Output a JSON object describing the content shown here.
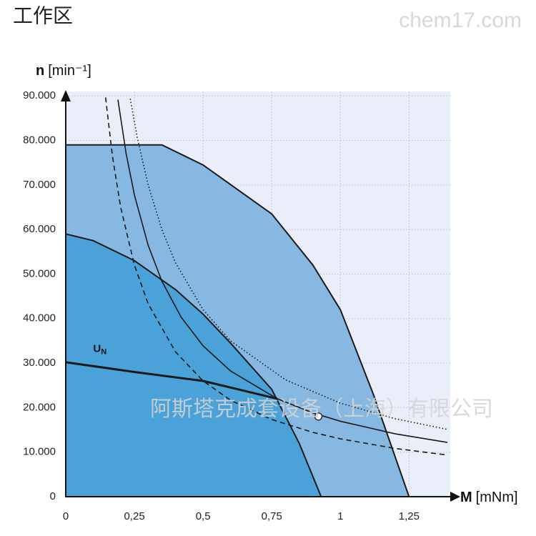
{
  "title": "工作区",
  "watermark": "chem17.com",
  "chart_data": {
    "type": "area",
    "x_label_symbol": "M",
    "x_label_unit": "[mNm]",
    "y_label_symbol": "n",
    "y_label_unit": "[min⁻¹]",
    "xlim": [
      0,
      1.4
    ],
    "ylim": [
      0,
      91000
    ],
    "xticks": [
      0,
      {
        "value": 0.25,
        "label": "0,25"
      },
      {
        "value": 0.5,
        "label": "0,5"
      },
      {
        "value": 0.75,
        "label": "0,75"
      },
      1,
      {
        "value": 1.25,
        "label": "1,25"
      }
    ],
    "yticks": [
      0,
      {
        "value": 10000,
        "label": "10.000"
      },
      {
        "value": 20000,
        "label": "20.000"
      },
      {
        "value": 30000,
        "label": "30.000"
      },
      {
        "value": 40000,
        "label": "40.000"
      },
      {
        "value": 50000,
        "label": "50.000"
      },
      {
        "value": 60000,
        "label": "60.000"
      },
      {
        "value": 70000,
        "label": "70.000"
      },
      {
        "value": 80000,
        "label": "80.000"
      },
      {
        "value": 90000,
        "label": "90.000"
      }
    ],
    "grid": true,
    "background": "#e9eef8",
    "series": [
      {
        "style": "area",
        "color": "#86b8e2",
        "x": [
          0,
          0.25,
          0.35,
          0.5,
          0.75,
          0.9,
          1.0,
          1.12,
          1.25
        ],
        "values": [
          79000,
          79000,
          79000,
          74500,
          63500,
          52000,
          42000,
          23000,
          0
        ]
      },
      {
        "style": "area",
        "color": "#4aa2d9",
        "x": [
          0,
          0.1,
          0.25,
          0.4,
          0.5,
          0.6,
          0.75,
          0.85,
          0.93
        ],
        "values": [
          59000,
          57500,
          53000,
          46500,
          41000,
          34500,
          24100,
          12000,
          0
        ]
      },
      {
        "style": "solid",
        "color": "#1a1a1a",
        "x": [
          0.19,
          0.22,
          0.25,
          0.3,
          0.35,
          0.42,
          0.5,
          0.6,
          0.77,
          0.9,
          1.0,
          1.2,
          1.39
        ],
        "values": [
          89158,
          77000,
          67760,
          56467,
          48400,
          40333,
          33880,
          28233,
          22000,
          18822,
          16940,
          14117,
          12187
        ]
      },
      {
        "style": "dashed",
        "color": "#1a1a1a",
        "x": [
          0.145,
          0.17,
          0.2,
          0.25,
          0.3,
          0.4,
          0.5,
          0.6,
          0.75,
          0.9,
          1.0,
          1.2,
          1.39
        ],
        "values": [
          89655,
          76471,
          65000,
          52000,
          43333,
          32500,
          26000,
          21667,
          17333,
          14444,
          13000,
          10833,
          9353
        ]
      },
      {
        "style": "dotted",
        "color": "#1a1a1a",
        "x": [
          0.235,
          0.26,
          0.3,
          0.35,
          0.4,
          0.5,
          0.6,
          0.8,
          1.0,
          1.2,
          1.39
        ],
        "values": [
          89362,
          80769,
          70000,
          60000,
          52500,
          42000,
          35000,
          26250,
          21000,
          17500,
          15108
        ]
      },
      {
        "style": "thick",
        "color": "#1a1a1a",
        "x": [
          0,
          0.25,
          0.5,
          0.77
        ],
        "values": [
          30200,
          28000,
          26000,
          22000
        ]
      }
    ],
    "annotation": {
      "text": "U",
      "subscript": "N",
      "x": 0.1,
      "y": 31500
    },
    "point": {
      "x": 0.92,
      "y": 18000,
      "color": "#ffffff"
    },
    "footer_watermark": "阿斯塔克成套设备（上海）有限公司"
  }
}
